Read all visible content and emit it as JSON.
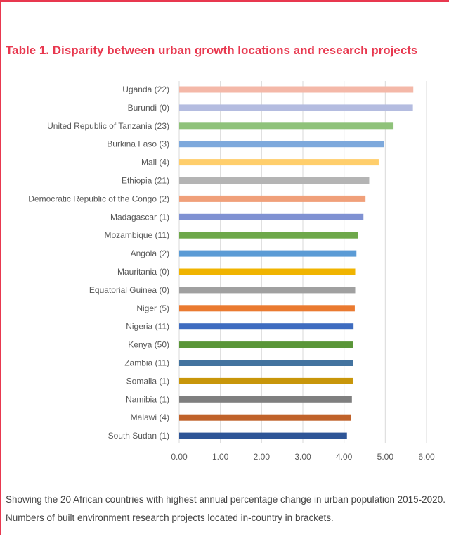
{
  "title": "Table 1. Disparity between urban growth locations and research projects",
  "caption": "Showing the 20 African countries with highest annual percentage change in urban population 2015-2020. Numbers of built environment research projects located in-country in brackets.",
  "colors": {
    "accent": "#e8384f",
    "grid": "#d9d9d9"
  },
  "chart_data": {
    "type": "bar",
    "orientation": "horizontal",
    "categories": [
      "Uganda (22)",
      "Burundi (0)",
      "United Republic of Tanzania (23)",
      "Burkina Faso (3)",
      "Mali (4)",
      "Ethiopia (21)",
      "Democratic Republic of the Congo (2)",
      "Madagascar (1)",
      "Mozambique (11)",
      "Angola (2)",
      "Mauritania (0)",
      "Equatorial Guinea (0)",
      "Niger (5)",
      "Nigeria (11)",
      "Kenya (50)",
      "Zambia (11)",
      "Somalia (1)",
      "Namibia (1)",
      "Malawi (4)",
      "South Sudan (1)"
    ],
    "values": [
      5.68,
      5.67,
      5.2,
      4.97,
      4.84,
      4.61,
      4.52,
      4.47,
      4.33,
      4.3,
      4.27,
      4.27,
      4.26,
      4.23,
      4.22,
      4.22,
      4.21,
      4.19,
      4.17,
      4.07
    ],
    "bar_colors": [
      "#f4b8a8",
      "#b4bce0",
      "#8fc27a",
      "#7ea9dc",
      "#ffce6b",
      "#b4b4b4",
      "#f0a07a",
      "#7f91d2",
      "#6ea84a",
      "#5b9bd5",
      "#f0b400",
      "#a0a0a0",
      "#ea7a30",
      "#3e6cc0",
      "#5a9638",
      "#43739f",
      "#c8960a",
      "#7f7f7f",
      "#c0622a",
      "#2e5597"
    ],
    "xlim": [
      0,
      6
    ],
    "xticks": [
      "0.00",
      "1.00",
      "2.00",
      "3.00",
      "4.00",
      "5.00",
      "6.00"
    ],
    "grid": true,
    "xlabel": "",
    "ylabel": ""
  }
}
